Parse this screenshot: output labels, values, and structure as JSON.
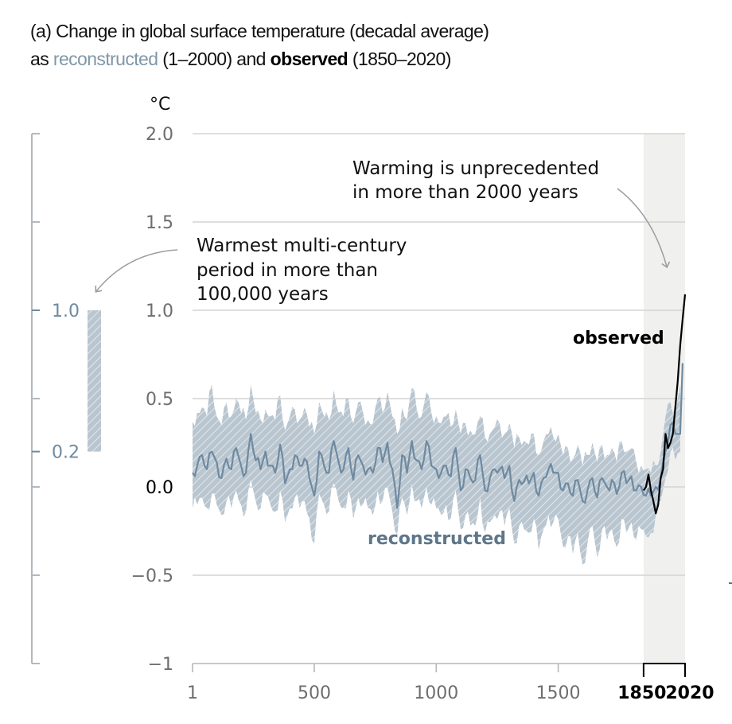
{
  "title": {
    "line1": "(a) Change in global surface temperature (decadal average)",
    "line2_prefix": "as ",
    "line2_reconstructed": "reconstructed",
    "line2_mid": " (1–2000) and ",
    "line2_observed": "observed",
    "line2_suffix": " (1850–2020)"
  },
  "colors": {
    "reconstructed": "#6f8aa0",
    "band": "#b9c6d0",
    "observed": "#000000",
    "shade": "#f0f0ef",
    "grid": "#d4d4d4",
    "axis": "#b4b8bc"
  },
  "chart_data": {
    "type": "line",
    "title": "(a) Change in global surface temperature (decadal average) as reconstructed (1–2000) and observed (1850–2020)",
    "ylabel": "°C",
    "xlabel": "",
    "xlim": [
      1,
      2020
    ],
    "ylim": [
      -1,
      2
    ],
    "grid": true,
    "yticks": [
      {
        "value": 2.0,
        "label": "2.0"
      },
      {
        "value": 1.5,
        "label": "1.5"
      },
      {
        "value": 1.0,
        "label": "1.0"
      },
      {
        "value": 0.5,
        "label": "0.5"
      },
      {
        "value": 0.0,
        "label": "0.0"
      },
      {
        "value": -0.5,
        "label": "−0.5"
      },
      {
        "value": -1,
        "label": "−1"
      }
    ],
    "xticks": [
      {
        "value": 1,
        "label": "1",
        "bold": false
      },
      {
        "value": 500,
        "label": "500",
        "bold": false
      },
      {
        "value": 1000,
        "label": "1000",
        "bold": false
      },
      {
        "value": 1500,
        "label": "1500",
        "bold": false
      },
      {
        "value": 1850,
        "label": "1850",
        "bold": true
      },
      {
        "value": 2020,
        "label": "2020",
        "bold": true
      }
    ],
    "shaded_period": [
      1850,
      2020
    ],
    "series": [
      {
        "name": "reconstructed",
        "x": [
          1,
          20,
          40,
          60,
          80,
          100,
          120,
          140,
          160,
          180,
          200,
          220,
          240,
          260,
          280,
          300,
          320,
          340,
          360,
          380,
          400,
          420,
          440,
          460,
          480,
          500,
          520,
          540,
          560,
          580,
          600,
          620,
          640,
          660,
          680,
          700,
          720,
          740,
          760,
          780,
          800,
          820,
          840,
          860,
          880,
          900,
          920,
          940,
          960,
          980,
          1000,
          1020,
          1040,
          1060,
          1080,
          1100,
          1120,
          1140,
          1160,
          1180,
          1200,
          1220,
          1240,
          1260,
          1280,
          1300,
          1320,
          1340,
          1360,
          1380,
          1400,
          1420,
          1440,
          1460,
          1480,
          1500,
          1520,
          1540,
          1560,
          1580,
          1600,
          1620,
          1640,
          1660,
          1680,
          1700,
          1720,
          1740,
          1760,
          1780,
          1800,
          1820,
          1840,
          1860,
          1880,
          1900,
          1920,
          1940,
          1960,
          1980,
          2000
        ],
        "values": [
          0.08,
          0.12,
          0.18,
          0.1,
          0.2,
          0.14,
          0.05,
          0.16,
          0.1,
          0.22,
          0.12,
          0.08,
          0.3,
          0.15,
          0.1,
          0.2,
          0.12,
          0.08,
          0.24,
          0.02,
          0.1,
          0.18,
          0.12,
          0.16,
          0.05,
          -0.05,
          0.2,
          0.12,
          0.08,
          0.26,
          0.14,
          0.1,
          0.22,
          0.04,
          0.18,
          0.12,
          0.1,
          0.08,
          0.22,
          0.14,
          0.25,
          0.1,
          -0.12,
          0.18,
          0.08,
          0.26,
          0.15,
          0.1,
          0.26,
          0.12,
          0.1,
          0.08,
          0.12,
          0.06,
          0.22,
          -0.02,
          0.1,
          0.05,
          0.04,
          0.18,
          -0.02,
          0.05,
          0.1,
          0.1,
          0.05,
          0.12,
          -0.08,
          0.04,
          0.03,
          0.02,
          0.08,
          -0.05,
          0.05,
          0.1,
          0.08,
          0.08,
          -0.02,
          0.02,
          -0.05,
          0.04,
          -0.08,
          -0.02,
          0.05,
          -0.06,
          0.05,
          0.0,
          0.04,
          -0.04,
          0.08,
          0.02,
          0.06,
          -0.02,
          0.0,
          -0.05,
          -0.05,
          0.0,
          0.05,
          0.2,
          0.35,
          0.3,
          0.3
        ]
      },
      {
        "name": "reconstructed-band-upper",
        "x": [
          1,
          20,
          40,
          60,
          80,
          100,
          120,
          140,
          160,
          180,
          200,
          220,
          240,
          260,
          280,
          300,
          320,
          340,
          360,
          380,
          400,
          420,
          440,
          460,
          480,
          500,
          520,
          540,
          560,
          580,
          600,
          620,
          640,
          660,
          680,
          700,
          720,
          740,
          760,
          780,
          800,
          820,
          840,
          860,
          880,
          900,
          920,
          940,
          960,
          980,
          1000,
          1020,
          1040,
          1060,
          1080,
          1100,
          1120,
          1140,
          1160,
          1180,
          1200,
          1220,
          1240,
          1260,
          1280,
          1300,
          1320,
          1340,
          1360,
          1380,
          1400,
          1420,
          1440,
          1460,
          1480,
          1500,
          1520,
          1540,
          1560,
          1580,
          1600,
          1620,
          1640,
          1660,
          1680,
          1700,
          1720,
          1740,
          1760,
          1780,
          1800,
          1820,
          1840,
          1860,
          1880,
          1900,
          1920,
          1940,
          1960,
          1980,
          2000
        ],
        "values": [
          0.37,
          0.42,
          0.45,
          0.4,
          0.58,
          0.4,
          0.35,
          0.48,
          0.4,
          0.5,
          0.42,
          0.38,
          0.58,
          0.42,
          0.38,
          0.44,
          0.4,
          0.38,
          0.52,
          0.32,
          0.4,
          0.44,
          0.38,
          0.45,
          0.34,
          0.3,
          0.48,
          0.4,
          0.38,
          0.55,
          0.42,
          0.4,
          0.5,
          0.36,
          0.48,
          0.42,
          0.38,
          0.36,
          0.5,
          0.42,
          0.54,
          0.4,
          0.3,
          0.45,
          0.38,
          0.56,
          0.44,
          0.4,
          0.54,
          0.42,
          0.4,
          0.36,
          0.4,
          0.34,
          0.44,
          0.3,
          0.36,
          0.32,
          0.3,
          0.4,
          0.28,
          0.3,
          0.34,
          0.36,
          0.3,
          0.36,
          0.22,
          0.28,
          0.26,
          0.24,
          0.3,
          0.18,
          0.26,
          0.3,
          0.28,
          0.3,
          0.18,
          0.22,
          0.16,
          0.24,
          0.12,
          0.18,
          0.25,
          0.14,
          0.24,
          0.18,
          0.22,
          0.14,
          0.26,
          0.2,
          0.22,
          0.14,
          0.12,
          0.1,
          0.08,
          0.12,
          0.2,
          0.4,
          0.48,
          0.45,
          0.58
        ]
      },
      {
        "name": "reconstructed-band-lower",
        "x": [
          1,
          20,
          40,
          60,
          80,
          100,
          120,
          140,
          160,
          180,
          200,
          220,
          240,
          260,
          280,
          300,
          320,
          340,
          360,
          380,
          400,
          420,
          440,
          460,
          480,
          500,
          520,
          540,
          560,
          580,
          600,
          620,
          640,
          660,
          680,
          700,
          720,
          740,
          760,
          780,
          800,
          820,
          840,
          860,
          880,
          900,
          920,
          940,
          960,
          980,
          1000,
          1020,
          1040,
          1060,
          1080,
          1100,
          1120,
          1140,
          1160,
          1180,
          1200,
          1220,
          1240,
          1260,
          1280,
          1300,
          1320,
          1340,
          1360,
          1380,
          1400,
          1420,
          1440,
          1460,
          1480,
          1500,
          1520,
          1540,
          1560,
          1580,
          1600,
          1620,
          1640,
          1660,
          1680,
          1700,
          1720,
          1740,
          1760,
          1780,
          1800,
          1820,
          1840,
          1860,
          1880,
          1900,
          1920,
          1940,
          1960,
          1980,
          2000
        ],
        "values": [
          -0.12,
          -0.1,
          -0.06,
          -0.12,
          -0.04,
          -0.1,
          -0.16,
          -0.08,
          -0.12,
          -0.02,
          -0.1,
          -0.14,
          0.04,
          -0.08,
          -0.12,
          -0.04,
          -0.1,
          -0.14,
          -0.02,
          -0.2,
          -0.12,
          -0.06,
          -0.12,
          -0.08,
          -0.18,
          -0.32,
          -0.04,
          -0.1,
          -0.14,
          0.02,
          -0.08,
          -0.12,
          -0.02,
          -0.18,
          -0.06,
          -0.1,
          -0.12,
          -0.16,
          -0.02,
          -0.08,
          0.0,
          -0.14,
          -0.28,
          -0.06,
          -0.16,
          0.02,
          -0.08,
          -0.12,
          0.0,
          -0.1,
          -0.12,
          -0.16,
          -0.1,
          -0.18,
          -0.02,
          -0.24,
          -0.16,
          -0.22,
          -0.22,
          -0.06,
          -0.26,
          -0.2,
          -0.16,
          -0.14,
          -0.22,
          -0.12,
          -0.32,
          -0.22,
          -0.24,
          -0.26,
          -0.18,
          -0.36,
          -0.24,
          -0.16,
          -0.2,
          -0.18,
          -0.34,
          -0.28,
          -0.38,
          -0.26,
          -0.44,
          -0.32,
          -0.22,
          -0.4,
          -0.24,
          -0.3,
          -0.24,
          -0.34,
          -0.18,
          -0.26,
          -0.2,
          -0.3,
          -0.24,
          -0.28,
          -0.26,
          -0.16,
          -0.08,
          0.05,
          0.2,
          0.15,
          0.2
        ]
      },
      {
        "name": "observed",
        "x": [
          1850,
          1860,
          1870,
          1880,
          1890,
          1900,
          1910,
          1920,
          1930,
          1940,
          1950,
          1960,
          1970,
          1980,
          1990,
          2000,
          2010,
          2020
        ],
        "values": [
          -0.02,
          0.0,
          0.07,
          -0.02,
          -0.08,
          -0.15,
          -0.1,
          0.05,
          0.1,
          0.3,
          0.22,
          0.25,
          0.3,
          0.45,
          0.6,
          0.8,
          0.95,
          1.09
        ]
      }
    ],
    "labels": {
      "observed": "observed",
      "reconstructed": "reconstructed"
    },
    "annotations": [
      {
        "lines": [
          "Warming is unprecedented",
          "in more than 2000 years"
        ],
        "points_to": "observed 2020"
      },
      {
        "lines": [
          "Warmest multi-century",
          "period in more than",
          "100,000 years"
        ],
        "points_to": "paleo range bar"
      }
    ],
    "paleo_range": {
      "description": "Warmest multi-century period in more than 100,000 years",
      "low": 0.2,
      "high": 1.0,
      "low_label": "0.2",
      "high_label": "1.0",
      "axis_ticks": [
        2.0,
        1.5,
        1.0,
        0.5,
        0.0,
        -0.5,
        -1
      ]
    }
  }
}
